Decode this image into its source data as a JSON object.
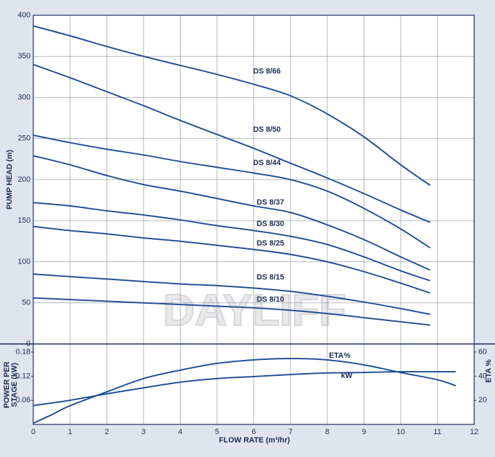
{
  "chart_data": [
    {
      "type": "line",
      "y_label": "PUMP HEAD (m)",
      "watermark": "DAYLIFF",
      "color": "#1f4e96",
      "xlim": [
        0,
        12
      ],
      "ylim": [
        0,
        400
      ],
      "yticks": [
        0,
        50,
        100,
        150,
        200,
        250,
        300,
        350,
        400
      ],
      "grid": true,
      "series": [
        {
          "name": "DS 8/66",
          "x": [
            0,
            1,
            2,
            3,
            4,
            5,
            6,
            7,
            8,
            9,
            10,
            10.8
          ],
          "values": [
            387,
            375,
            362,
            350,
            339,
            328,
            316,
            302,
            280,
            252,
            218,
            193
          ]
        },
        {
          "name": "DS 8/50",
          "x": [
            0,
            1,
            2,
            3,
            4,
            5,
            6,
            7,
            8,
            9,
            10,
            10.8
          ],
          "values": [
            340,
            324,
            307,
            290,
            272,
            255,
            238,
            220,
            202,
            183,
            163,
            148
          ]
        },
        {
          "name": "DS 8/44",
          "x": [
            0,
            1,
            2,
            3,
            4,
            5,
            6,
            7,
            8,
            9,
            10,
            10.8
          ],
          "values": [
            254,
            245,
            237,
            230,
            222,
            215,
            208,
            200,
            186,
            165,
            140,
            117
          ]
        },
        {
          "name": "DS 8/37",
          "x": [
            0,
            1,
            2,
            3,
            4,
            5,
            6,
            7,
            8,
            9,
            10,
            10.8
          ],
          "values": [
            229,
            218,
            205,
            194,
            186,
            177,
            168,
            160,
            145,
            127,
            106,
            90
          ]
        },
        {
          "name": "DS 8/30",
          "x": [
            0,
            1,
            2,
            3,
            4,
            5,
            6,
            7,
            8,
            9,
            10,
            10.8
          ],
          "values": [
            172,
            168,
            162,
            157,
            151,
            144,
            138,
            131,
            121,
            106,
            89,
            77
          ]
        },
        {
          "name": "DS 8/25",
          "x": [
            0,
            1,
            2,
            3,
            4,
            5,
            6,
            7,
            8,
            9,
            10,
            10.8
          ],
          "values": [
            143,
            138,
            134,
            129,
            125,
            120,
            115,
            109,
            100,
            88,
            74,
            62
          ]
        },
        {
          "name": "DS 8/15",
          "x": [
            0,
            1,
            2,
            3,
            4,
            5,
            6,
            7,
            8,
            9,
            10,
            10.8
          ],
          "values": [
            85,
            82,
            79,
            76,
            73,
            71,
            68,
            64,
            58,
            51,
            43,
            36
          ]
        },
        {
          "name": "DS 8/10",
          "x": [
            0,
            1,
            2,
            3,
            4,
            5,
            6,
            7,
            8,
            9,
            10,
            10.8
          ],
          "values": [
            56,
            54,
            52,
            50,
            48,
            46,
            44,
            41,
            37,
            32,
            27,
            23
          ]
        }
      ]
    },
    {
      "type": "line",
      "x_label": "FLOW RATE (m³/hr)",
      "y_label": [
        "POWER PER",
        "STAGE (kW)"
      ],
      "y2_label": "ETA %",
      "color": "#1f4e96",
      "xlim": [
        0,
        12
      ],
      "xticks": [
        0,
        1,
        2,
        3,
        4,
        5,
        6,
        7,
        8,
        9,
        10,
        11,
        12
      ],
      "ylim": [
        0,
        0.2
      ],
      "yticks": [
        0.06,
        0.12,
        0.18
      ],
      "y2lim": [
        0,
        66.7
      ],
      "y2ticks": [
        20,
        40,
        60
      ],
      "grid": true,
      "series": [
        {
          "name": "ETA%",
          "axis": "y2",
          "x": [
            0,
            0.5,
            1,
            2,
            3,
            4,
            5,
            6,
            7,
            8,
            9,
            10,
            11,
            11.5
          ],
          "values": [
            1,
            8,
            15.5,
            27,
            38,
            45,
            50.6,
            53.5,
            54.6,
            53.5,
            49.4,
            43,
            37,
            32
          ]
        },
        {
          "name": "kW",
          "x": [
            0,
            1,
            2,
            3,
            4,
            5,
            6,
            7,
            8,
            9,
            10,
            11.5
          ],
          "values": [
            0.047,
            0.06,
            0.076,
            0.091,
            0.105,
            0.114,
            0.119,
            0.124,
            0.128,
            0.129,
            0.131,
            0.131
          ]
        }
      ]
    }
  ]
}
